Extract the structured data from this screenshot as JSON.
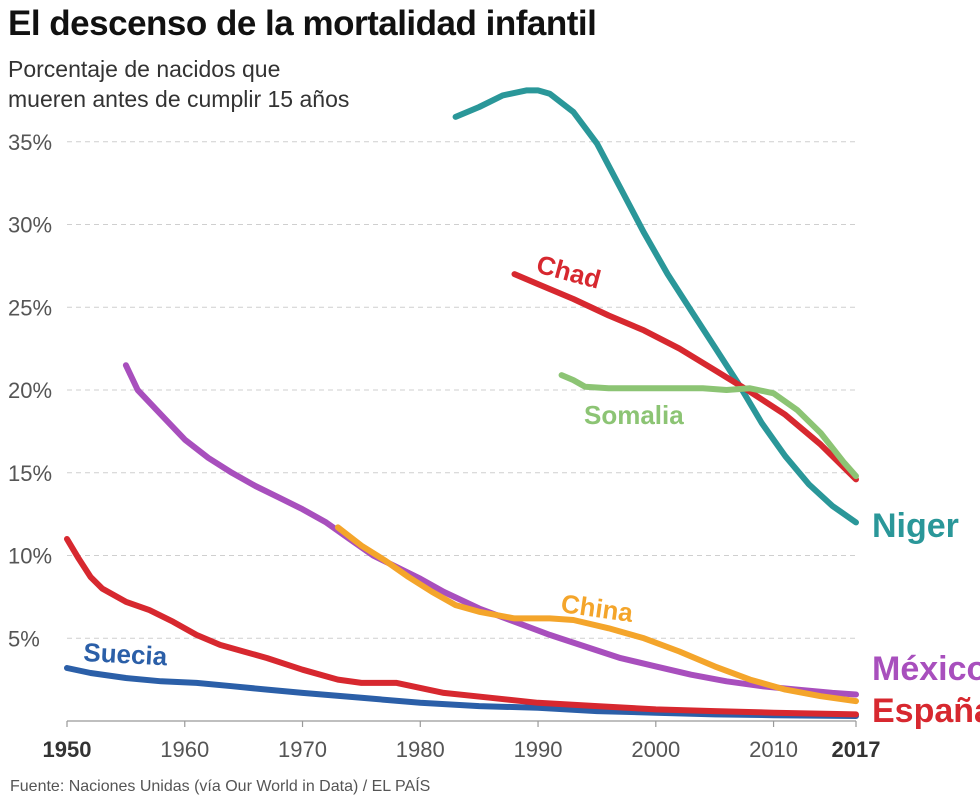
{
  "header": {
    "title": "El descenso de la mortalidad infantil",
    "subtitle_line1": "Porcentaje de nacidos que",
    "subtitle_line2": "mueren antes de cumplir 15 años"
  },
  "footer": {
    "source": "Fuente: Naciones Unidas (vía Our World in Data) / EL PAÍS"
  },
  "chart_data": {
    "type": "line",
    "title": "El descenso de la mortalidad infantil",
    "ylabel": "Porcentaje de nacidos que mueren antes de cumplir 15 años",
    "xlabel": "",
    "xlim": [
      1950,
      2017
    ],
    "ylim": [
      0,
      38
    ],
    "grid": true,
    "y_ticks": [
      {
        "value": 5,
        "label": "5%"
      },
      {
        "value": 10,
        "label": "10%"
      },
      {
        "value": 15,
        "label": "15%"
      },
      {
        "value": 20,
        "label": "20%"
      },
      {
        "value": 25,
        "label": "25%"
      },
      {
        "value": 30,
        "label": "30%"
      },
      {
        "value": 35,
        "label": "35%"
      }
    ],
    "x_ticks": [
      {
        "value": 1950,
        "label": "1950",
        "bold": true
      },
      {
        "value": 1960,
        "label": "1960",
        "bold": false
      },
      {
        "value": 1970,
        "label": "1970",
        "bold": false
      },
      {
        "value": 1980,
        "label": "1980",
        "bold": false
      },
      {
        "value": 1990,
        "label": "1990",
        "bold": false
      },
      {
        "value": 2000,
        "label": "2000",
        "bold": false
      },
      {
        "value": 2010,
        "label": "2010",
        "bold": false
      },
      {
        "value": 2017,
        "label": "2017",
        "bold": true
      }
    ],
    "series": [
      {
        "name": "Niger",
        "color": "#2a9799",
        "x": [
          1983,
          1985,
          1987,
          1989,
          1990,
          1991,
          1993,
          1995,
          1997,
          1999,
          2001,
          2003,
          2005,
          2007,
          2009,
          2011,
          2013,
          2015,
          2017
        ],
        "values": [
          36.5,
          37.1,
          37.8,
          38.1,
          38.1,
          37.9,
          36.8,
          34.9,
          32.2,
          29.5,
          27.0,
          24.8,
          22.6,
          20.4,
          18.0,
          16.0,
          14.3,
          13.0,
          12.0
        ]
      },
      {
        "name": "Chad",
        "color": "#d7282f",
        "x": [
          1988,
          1990,
          1993,
          1996,
          1999,
          2002,
          2005,
          2008,
          2011,
          2014,
          2017
        ],
        "values": [
          27.0,
          26.4,
          25.5,
          24.5,
          23.6,
          22.5,
          21.2,
          19.9,
          18.5,
          16.7,
          14.6
        ]
      },
      {
        "name": "Somalia",
        "color": "#8cc474",
        "x": [
          1992,
          1993,
          1994,
          1996,
          1998,
          2000,
          2002,
          2004,
          2006,
          2008,
          2010,
          2012,
          2014,
          2016,
          2017
        ],
        "values": [
          20.9,
          20.6,
          20.2,
          20.1,
          20.1,
          20.1,
          20.1,
          20.1,
          20.0,
          20.1,
          19.8,
          18.8,
          17.4,
          15.6,
          14.8
        ]
      },
      {
        "name": "México",
        "color": "#a84fbd",
        "x": [
          1955,
          1956,
          1958,
          1960,
          1962,
          1964,
          1966,
          1968,
          1970,
          1972,
          1974,
          1976,
          1978,
          1980,
          1982,
          1985,
          1988,
          1991,
          1994,
          1997,
          2000,
          2003,
          2006,
          2009,
          2012,
          2015,
          2017
        ],
        "values": [
          21.5,
          20.0,
          18.5,
          17.0,
          15.9,
          15.0,
          14.2,
          13.5,
          12.8,
          12.0,
          11.0,
          10.0,
          9.3,
          8.6,
          7.8,
          6.8,
          6.0,
          5.2,
          4.5,
          3.8,
          3.3,
          2.8,
          2.4,
          2.1,
          1.9,
          1.7,
          1.6
        ]
      },
      {
        "name": "China",
        "color": "#f4a52b",
        "x": [
          1973,
          1975,
          1977,
          1979,
          1981,
          1983,
          1985,
          1988,
          1991,
          1993,
          1996,
          1999,
          2002,
          2005,
          2008,
          2011,
          2014,
          2017
        ],
        "values": [
          11.7,
          10.6,
          9.7,
          8.7,
          7.8,
          7.0,
          6.6,
          6.2,
          6.2,
          6.1,
          5.6,
          5.0,
          4.2,
          3.3,
          2.5,
          1.9,
          1.5,
          1.2
        ]
      },
      {
        "name": "España",
        "color": "#d7282f",
        "x": [
          1950,
          1951,
          1952,
          1953,
          1955,
          1957,
          1959,
          1961,
          1963,
          1965,
          1967,
          1970,
          1973,
          1975,
          1978,
          1982,
          1986,
          1990,
          1995,
          2000,
          2005,
          2010,
          2017
        ],
        "values": [
          11.0,
          9.8,
          8.7,
          8.0,
          7.2,
          6.7,
          6.0,
          5.2,
          4.6,
          4.2,
          3.8,
          3.1,
          2.5,
          2.3,
          2.3,
          1.7,
          1.4,
          1.1,
          0.9,
          0.7,
          0.6,
          0.5,
          0.4
        ]
      },
      {
        "name": "Suecia",
        "color": "#2b5fa8",
        "x": [
          1950,
          1952,
          1955,
          1958,
          1961,
          1964,
          1967,
          1970,
          1975,
          1980,
          1985,
          1990,
          1995,
          2000,
          2005,
          2010,
          2017
        ],
        "values": [
          3.2,
          2.9,
          2.6,
          2.4,
          2.3,
          2.1,
          1.9,
          1.7,
          1.4,
          1.1,
          0.9,
          0.8,
          0.6,
          0.5,
          0.4,
          0.35,
          0.3
        ]
      }
    ],
    "series_labels": [
      {
        "name": "Chad",
        "series": 1,
        "size": 26,
        "rotate": 15
      },
      {
        "name": "Somalia",
        "series": 2,
        "size": 26,
        "rotate": 0
      },
      {
        "name": "Niger",
        "series": 0,
        "size": 34,
        "rotate": 0
      },
      {
        "name": "China",
        "series": 4,
        "size": 26,
        "rotate": 8
      },
      {
        "name": "Suecia",
        "series": 6,
        "size": 26,
        "rotate": 3
      },
      {
        "name": "México",
        "series": 3,
        "size": 34,
        "rotate": 0
      },
      {
        "name": "España",
        "series": 5,
        "size": 34,
        "rotate": 0
      }
    ]
  }
}
